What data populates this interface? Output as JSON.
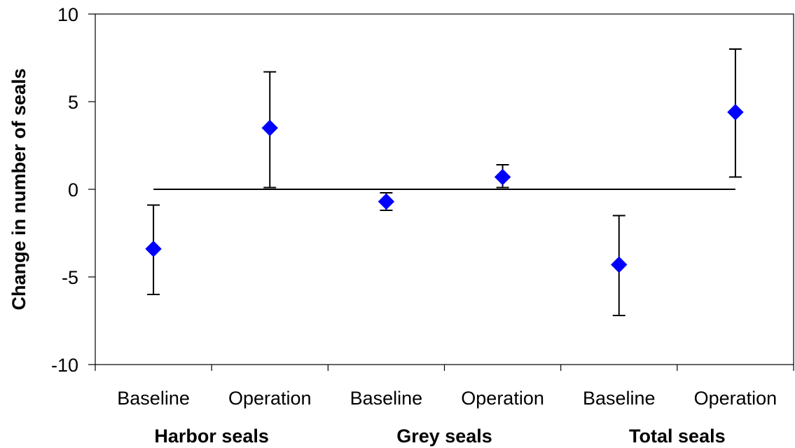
{
  "chart_data": {
    "type": "scatter",
    "title": "",
    "xlabel": "",
    "ylabel": "Change in number of seals",
    "ylim": [
      -10,
      10
    ],
    "yticks": [
      -10,
      -5,
      0,
      5,
      10
    ],
    "grid": false,
    "legend": "none",
    "marker_color": "#0000ff",
    "reference_line_y": 0,
    "categories": [
      "Baseline",
      "Operation",
      "Baseline",
      "Operation",
      "Baseline",
      "Operation"
    ],
    "groups": [
      {
        "name": "Harbor seals",
        "span": [
          0,
          1
        ]
      },
      {
        "name": "Grey seals",
        "span": [
          2,
          3
        ]
      },
      {
        "name": "Total seals",
        "span": [
          4,
          5
        ]
      }
    ],
    "points": [
      {
        "category": "Baseline",
        "group": "Harbor seals",
        "y": -3.4,
        "low": -6.0,
        "high": -0.9
      },
      {
        "category": "Operation",
        "group": "Harbor seals",
        "y": 3.5,
        "low": 0.1,
        "high": 6.7
      },
      {
        "category": "Baseline",
        "group": "Grey seals",
        "y": -0.7,
        "low": -1.2,
        "high": -0.2
      },
      {
        "category": "Operation",
        "group": "Grey seals",
        "y": 0.7,
        "low": 0.1,
        "high": 1.4
      },
      {
        "category": "Baseline",
        "group": "Total seals",
        "y": -4.3,
        "low": -7.2,
        "high": -1.5
      },
      {
        "category": "Operation",
        "group": "Total seals",
        "y": 4.4,
        "low": 0.7,
        "high": 8.0
      }
    ]
  }
}
